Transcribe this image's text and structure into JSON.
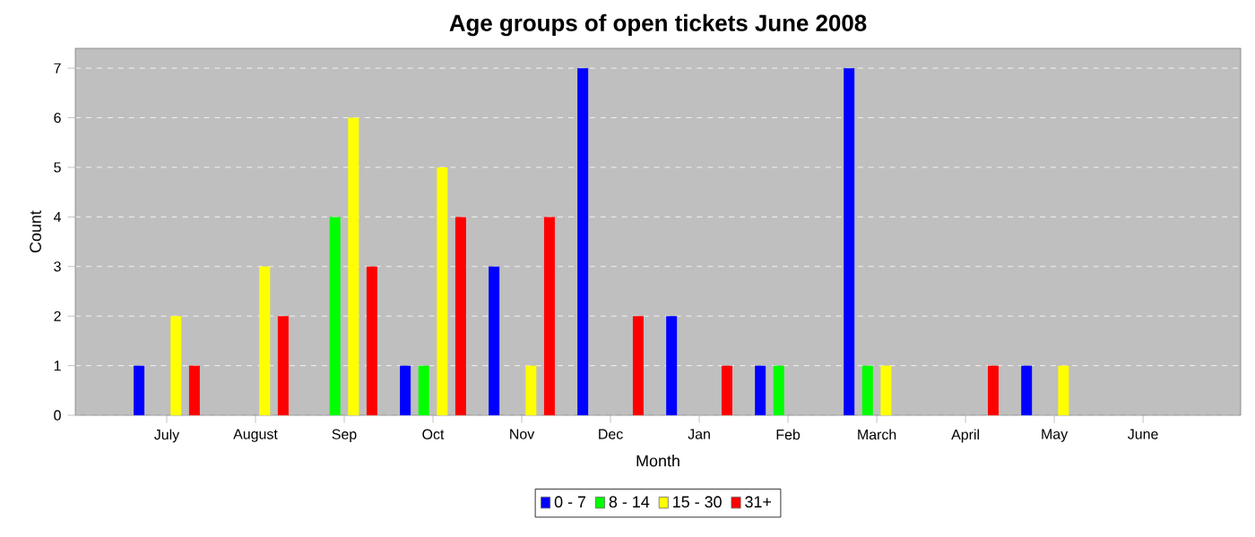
{
  "chart_data": {
    "type": "bar",
    "title": "Age groups of open tickets June 2008",
    "xlabel": "Month",
    "ylabel": "Count",
    "categories": [
      "July",
      "August",
      "Sep",
      "Oct",
      "Nov",
      "Dec",
      "Jan",
      "Feb",
      "March",
      "April",
      "May",
      "June"
    ],
    "series": [
      {
        "name": "0 - 7",
        "color": "#0000ff",
        "values": [
          1,
          0,
          0,
          1,
          3,
          7,
          2,
          1,
          7,
          0,
          1,
          0
        ]
      },
      {
        "name": "8 - 14",
        "color": "#00ff00",
        "values": [
          0,
          0,
          4,
          1,
          0,
          0,
          0,
          1,
          1,
          0,
          0,
          0
        ]
      },
      {
        "name": "15 - 30",
        "color": "#ffff00",
        "values": [
          2,
          3,
          6,
          5,
          1,
          0,
          0,
          0,
          1,
          0,
          1,
          0
        ]
      },
      {
        "name": "31+",
        "color": "#ff0000",
        "values": [
          1,
          2,
          3,
          4,
          4,
          2,
          1,
          0,
          0,
          1,
          0,
          0
        ]
      }
    ],
    "ylim": [
      0,
      7.4
    ],
    "yticks": [
      0,
      1,
      2,
      3,
      4,
      5,
      6,
      7
    ],
    "grid": "y",
    "legend": "bottom"
  }
}
